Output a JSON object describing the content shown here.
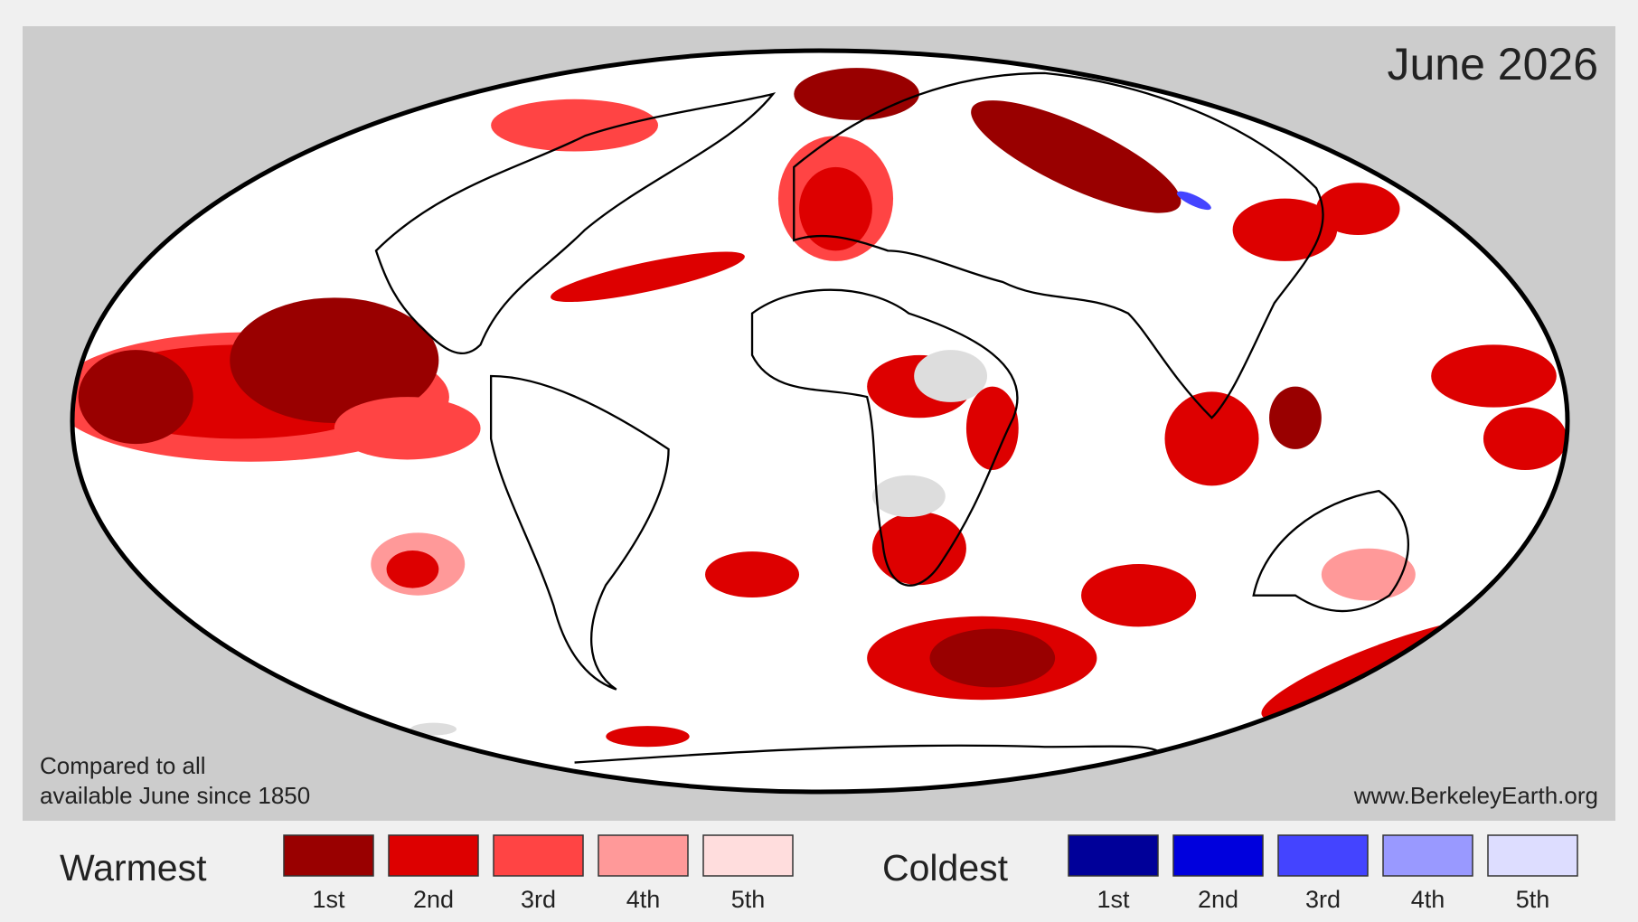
{
  "map": {
    "title": "June 2026",
    "note": [
      "Compared to all",
      "available June since 1850"
    ],
    "source": "www.BerkeleyEarth.org"
  },
  "legend": {
    "warm": {
      "label": "Warmest",
      "items": [
        {
          "label": "1st",
          "color": "#990000"
        },
        {
          "label": "2nd",
          "color": "#dd0000"
        },
        {
          "label": "3rd",
          "color": "#ff4444"
        },
        {
          "label": "4th",
          "color": "#ff9999"
        },
        {
          "label": "5th",
          "color": "#ffdddd"
        }
      ]
    },
    "cold": {
      "label": "Coldest",
      "items": [
        {
          "label": "1st",
          "color": "#000099"
        },
        {
          "label": "2nd",
          "color": "#0000dd"
        },
        {
          "label": "3rd",
          "color": "#4444ff"
        },
        {
          "label": "4th",
          "color": "#9999ff"
        },
        {
          "label": "5th",
          "color": "#ddddff"
        }
      ]
    }
  }
}
